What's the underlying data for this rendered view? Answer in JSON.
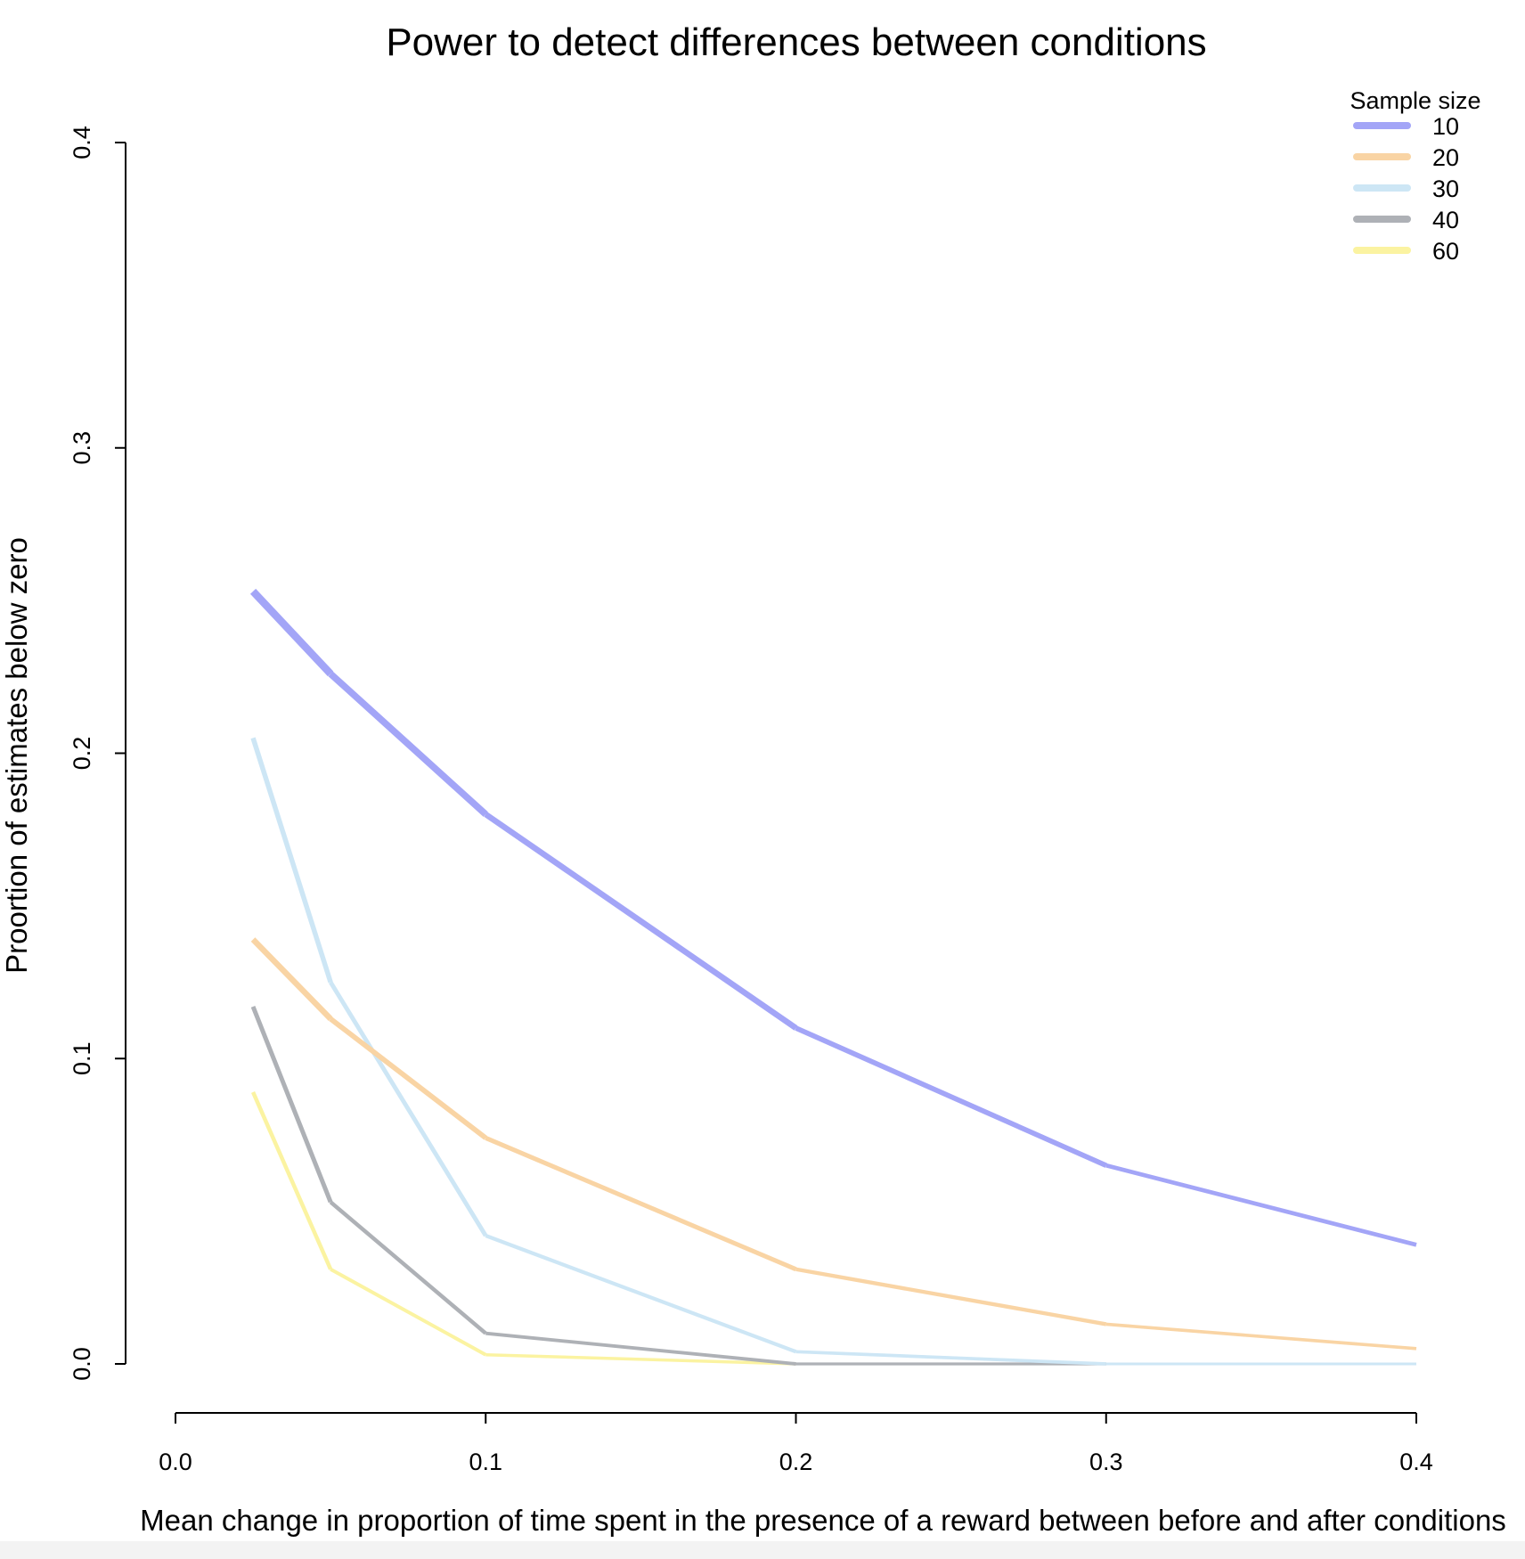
{
  "chart_data": {
    "type": "line",
    "title": "Power to detect differences between conditions",
    "xlabel": "Mean change in proportion of time spent in the presence of a reward between before and after conditions",
    "ylabel": "Proortion of estimates below zero",
    "xlim": [
      0.0,
      0.4
    ],
    "ylim": [
      0.0,
      0.4
    ],
    "x_ticks": [
      "0.0",
      "0.1",
      "0.2",
      "0.3",
      "0.4"
    ],
    "y_ticks": [
      "0.0",
      "0.1",
      "0.2",
      "0.3",
      "0.4"
    ],
    "grid": false,
    "legend": {
      "title": "Sample size",
      "position": "top-right"
    },
    "x": [
      0.025,
      0.05,
      0.1,
      0.2,
      0.3,
      0.4
    ],
    "series": [
      {
        "name": "10",
        "color": "#a3a5f7",
        "values": [
          0.253,
          0.226,
          0.18,
          0.11,
          0.065,
          0.039
        ]
      },
      {
        "name": "20",
        "color": "#f9d4a4",
        "values": [
          0.139,
          0.113,
          0.074,
          0.031,
          0.013,
          0.005
        ]
      },
      {
        "name": "30",
        "color": "#cde6f5",
        "values": [
          0.205,
          0.125,
          0.042,
          0.004,
          0.0,
          0.0
        ]
      },
      {
        "name": "40",
        "color": "#aeb1b6",
        "values": [
          0.117,
          0.053,
          0.01,
          0.0,
          0.0,
          0.0
        ]
      },
      {
        "name": "60",
        "color": "#fbf3a1",
        "values": [
          0.089,
          0.031,
          0.003,
          0.0,
          0.0,
          0.0
        ]
      }
    ]
  }
}
